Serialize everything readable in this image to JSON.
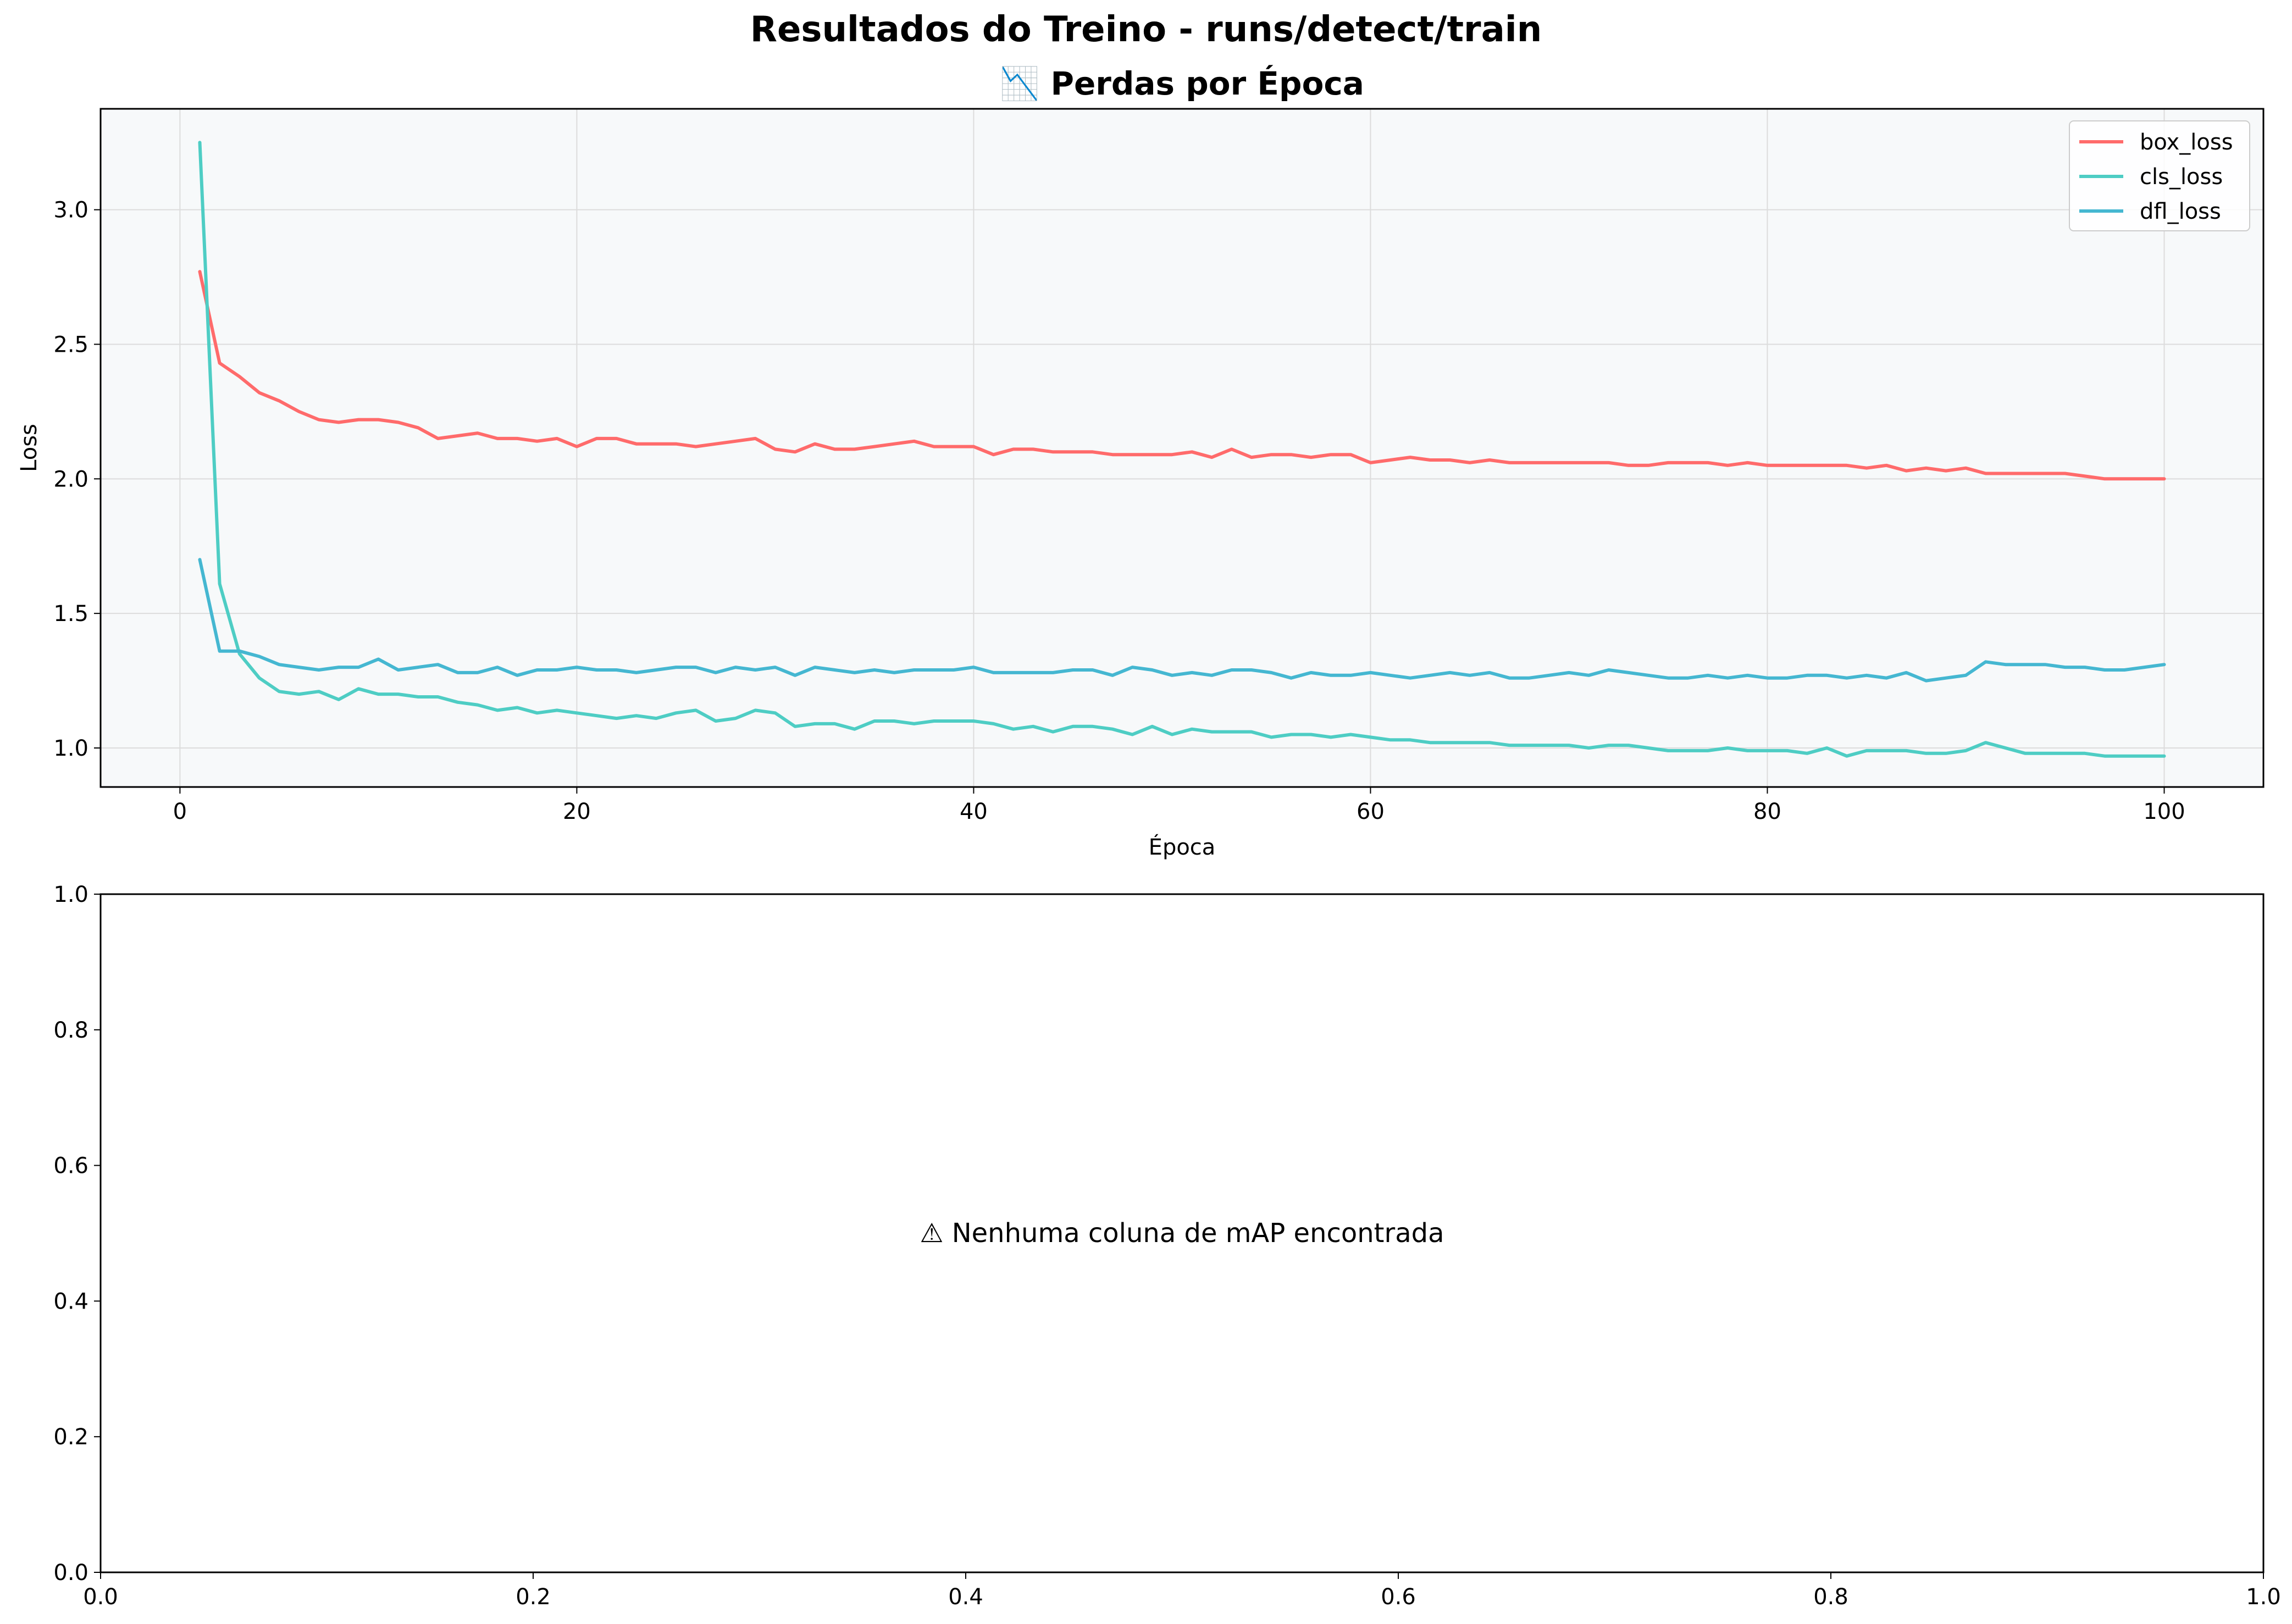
{
  "figure": {
    "suptitle": "Resultados do Treino - runs/detect/train"
  },
  "chart_data": [
    {
      "type": "line",
      "title": "📉 Perdas por Época",
      "xlabel": "Época",
      "ylabel": "Loss",
      "xlim": [
        -4,
        105
      ],
      "ylim": [
        0.855,
        3.375
      ],
      "xticks": [
        "0",
        "20",
        "40",
        "60",
        "80",
        "100"
      ],
      "yticks": [
        "1.0",
        "1.5",
        "2.0",
        "2.5",
        "3.0"
      ],
      "grid": true,
      "legend_position": "top-right",
      "background": "#f7f9fa",
      "series": [
        {
          "name": "box_loss",
          "color": "#ff6b6b",
          "x": [
            1,
            2,
            3,
            4,
            5,
            6,
            7,
            8,
            9,
            10,
            11,
            12,
            13,
            14,
            15,
            16,
            17,
            18,
            19,
            20,
            21,
            22,
            23,
            24,
            25,
            26,
            27,
            28,
            29,
            30,
            31,
            32,
            33,
            34,
            35,
            36,
            37,
            38,
            39,
            40,
            41,
            42,
            43,
            44,
            45,
            46,
            47,
            48,
            49,
            50,
            51,
            52,
            53,
            54,
            55,
            56,
            57,
            58,
            59,
            60,
            61,
            62,
            63,
            64,
            65,
            66,
            67,
            68,
            69,
            70,
            71,
            72,
            73,
            74,
            75,
            76,
            77,
            78,
            79,
            80,
            81,
            82,
            83,
            84,
            85,
            86,
            87,
            88,
            89,
            90,
            91,
            92,
            93,
            94,
            95,
            96,
            97,
            98,
            99,
            100
          ],
          "values": [
            2.77,
            2.43,
            2.38,
            2.32,
            2.29,
            2.25,
            2.22,
            2.21,
            2.22,
            2.22,
            2.21,
            2.19,
            2.15,
            2.16,
            2.17,
            2.15,
            2.15,
            2.14,
            2.15,
            2.12,
            2.15,
            2.15,
            2.13,
            2.13,
            2.13,
            2.12,
            2.13,
            2.14,
            2.15,
            2.11,
            2.1,
            2.13,
            2.11,
            2.11,
            2.12,
            2.13,
            2.14,
            2.12,
            2.12,
            2.12,
            2.09,
            2.11,
            2.11,
            2.1,
            2.1,
            2.1,
            2.09,
            2.09,
            2.09,
            2.09,
            2.1,
            2.08,
            2.11,
            2.08,
            2.09,
            2.09,
            2.08,
            2.09,
            2.09,
            2.06,
            2.07,
            2.08,
            2.07,
            2.07,
            2.06,
            2.07,
            2.06,
            2.06,
            2.06,
            2.06,
            2.06,
            2.06,
            2.05,
            2.05,
            2.06,
            2.06,
            2.06,
            2.05,
            2.06,
            2.05,
            2.05,
            2.05,
            2.05,
            2.05,
            2.04,
            2.05,
            2.03,
            2.04,
            2.03,
            2.04,
            2.02,
            2.02,
            2.02,
            2.02,
            2.02,
            2.01,
            2.0,
            2.0,
            2.0,
            2.0
          ]
        },
        {
          "name": "cls_loss",
          "color": "#4ecdc4",
          "x": [
            1,
            2,
            3,
            4,
            5,
            6,
            7,
            8,
            9,
            10,
            11,
            12,
            13,
            14,
            15,
            16,
            17,
            18,
            19,
            20,
            21,
            22,
            23,
            24,
            25,
            26,
            27,
            28,
            29,
            30,
            31,
            32,
            33,
            34,
            35,
            36,
            37,
            38,
            39,
            40,
            41,
            42,
            43,
            44,
            45,
            46,
            47,
            48,
            49,
            50,
            51,
            52,
            53,
            54,
            55,
            56,
            57,
            58,
            59,
            60,
            61,
            62,
            63,
            64,
            65,
            66,
            67,
            68,
            69,
            70,
            71,
            72,
            73,
            74,
            75,
            76,
            77,
            78,
            79,
            80,
            81,
            82,
            83,
            84,
            85,
            86,
            87,
            88,
            89,
            90,
            91,
            92,
            93,
            94,
            95,
            96,
            97,
            98,
            99,
            100
          ],
          "values": [
            3.25,
            1.61,
            1.35,
            1.26,
            1.21,
            1.2,
            1.21,
            1.18,
            1.22,
            1.2,
            1.2,
            1.19,
            1.19,
            1.17,
            1.16,
            1.14,
            1.15,
            1.13,
            1.14,
            1.13,
            1.12,
            1.11,
            1.12,
            1.11,
            1.13,
            1.14,
            1.1,
            1.11,
            1.14,
            1.13,
            1.08,
            1.09,
            1.09,
            1.07,
            1.1,
            1.1,
            1.09,
            1.1,
            1.1,
            1.1,
            1.09,
            1.07,
            1.08,
            1.06,
            1.08,
            1.08,
            1.07,
            1.05,
            1.08,
            1.05,
            1.07,
            1.06,
            1.06,
            1.06,
            1.04,
            1.05,
            1.05,
            1.04,
            1.05,
            1.04,
            1.03,
            1.03,
            1.02,
            1.02,
            1.02,
            1.02,
            1.01,
            1.01,
            1.01,
            1.01,
            1.0,
            1.01,
            1.01,
            1.0,
            0.99,
            0.99,
            0.99,
            1.0,
            0.99,
            0.99,
            0.99,
            0.98,
            1.0,
            0.97,
            0.99,
            0.99,
            0.99,
            0.98,
            0.98,
            0.99,
            1.02,
            1.0,
            0.98,
            0.98,
            0.98,
            0.98,
            0.97,
            0.97,
            0.97,
            0.97
          ]
        },
        {
          "name": "dfl_loss",
          "color": "#45b7d1",
          "x": [
            1,
            2,
            3,
            4,
            5,
            6,
            7,
            8,
            9,
            10,
            11,
            12,
            13,
            14,
            15,
            16,
            17,
            18,
            19,
            20,
            21,
            22,
            23,
            24,
            25,
            26,
            27,
            28,
            29,
            30,
            31,
            32,
            33,
            34,
            35,
            36,
            37,
            38,
            39,
            40,
            41,
            42,
            43,
            44,
            45,
            46,
            47,
            48,
            49,
            50,
            51,
            52,
            53,
            54,
            55,
            56,
            57,
            58,
            59,
            60,
            61,
            62,
            63,
            64,
            65,
            66,
            67,
            68,
            69,
            70,
            71,
            72,
            73,
            74,
            75,
            76,
            77,
            78,
            79,
            80,
            81,
            82,
            83,
            84,
            85,
            86,
            87,
            88,
            89,
            90,
            91,
            92,
            93,
            94,
            95,
            96,
            97,
            98,
            99,
            100
          ],
          "values": [
            1.7,
            1.36,
            1.36,
            1.34,
            1.31,
            1.3,
            1.29,
            1.3,
            1.3,
            1.33,
            1.29,
            1.3,
            1.31,
            1.28,
            1.28,
            1.3,
            1.27,
            1.29,
            1.29,
            1.3,
            1.29,
            1.29,
            1.28,
            1.29,
            1.3,
            1.3,
            1.28,
            1.3,
            1.29,
            1.3,
            1.27,
            1.3,
            1.29,
            1.28,
            1.29,
            1.28,
            1.29,
            1.29,
            1.29,
            1.3,
            1.28,
            1.28,
            1.28,
            1.28,
            1.29,
            1.29,
            1.27,
            1.3,
            1.29,
            1.27,
            1.28,
            1.27,
            1.29,
            1.29,
            1.28,
            1.26,
            1.28,
            1.27,
            1.27,
            1.28,
            1.27,
            1.26,
            1.27,
            1.28,
            1.27,
            1.28,
            1.26,
            1.26,
            1.27,
            1.28,
            1.27,
            1.29,
            1.28,
            1.27,
            1.26,
            1.26,
            1.27,
            1.26,
            1.27,
            1.26,
            1.26,
            1.27,
            1.27,
            1.26,
            1.27,
            1.26,
            1.28,
            1.25,
            1.26,
            1.27,
            1.32,
            1.31,
            1.31,
            1.31,
            1.3,
            1.3,
            1.29,
            1.29,
            1.3,
            1.31
          ]
        }
      ]
    },
    {
      "type": "line",
      "title": "",
      "message": "⚠ Nenhuma coluna de mAP encontrada",
      "xlim": [
        0,
        1
      ],
      "ylim": [
        0,
        1
      ],
      "xticks": [
        "0.0",
        "0.2",
        "0.4",
        "0.6",
        "0.8",
        "1.0"
      ],
      "yticks": [
        "0.0",
        "0.2",
        "0.4",
        "0.6",
        "0.8",
        "1.0"
      ],
      "grid": false,
      "series": []
    }
  ]
}
